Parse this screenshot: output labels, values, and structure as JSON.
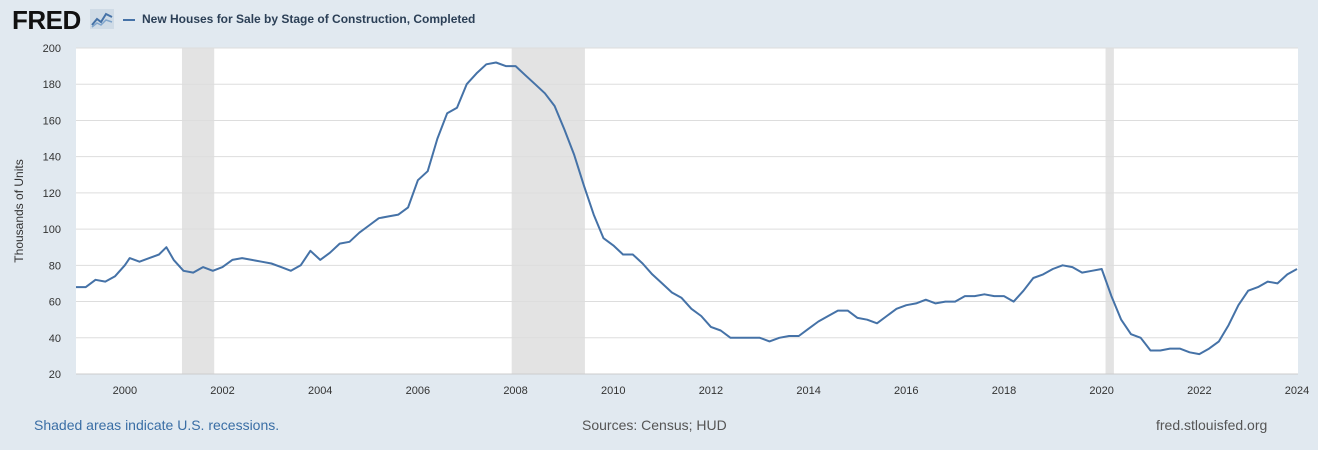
{
  "header": {
    "logo_text": "FRED",
    "logo_icon": "line-chart-icon"
  },
  "chart_data": {
    "type": "line",
    "title": "",
    "xlabel": "",
    "ylabel": "Thousands of Units",
    "xlim": [
      1999.0,
      2024.02
    ],
    "ylim": [
      20,
      200
    ],
    "grid": true,
    "legend_placement": "top-left",
    "x_ticks": [
      "2000",
      "2002",
      "2004",
      "2006",
      "2008",
      "2010",
      "2012",
      "2014",
      "2016",
      "2018",
      "2020",
      "2022",
      "2024"
    ],
    "y_ticks": [
      "20",
      "40",
      "60",
      "80",
      "100",
      "120",
      "140",
      "160",
      "180",
      "200"
    ],
    "recessions": [
      [
        2001.17,
        2001.83
      ],
      [
        2007.92,
        2009.42
      ],
      [
        2020.08,
        2020.25
      ]
    ],
    "series": [
      {
        "name": "New Houses for Sale by Stage of Construction, Completed",
        "color": "#4572a7",
        "x": [
          1999.0,
          1999.2,
          1999.4,
          1999.6,
          1999.8,
          2000.0,
          2000.1,
          2000.3,
          2000.5,
          2000.7,
          2000.85,
          2001.0,
          2001.2,
          2001.4,
          2001.6,
          2001.8,
          2002.0,
          2002.2,
          2002.4,
          2002.6,
          2002.8,
          2003.0,
          2003.2,
          2003.4,
          2003.6,
          2003.8,
          2004.0,
          2004.2,
          2004.4,
          2004.6,
          2004.8,
          2005.0,
          2005.2,
          2005.4,
          2005.6,
          2005.8,
          2006.0,
          2006.2,
          2006.4,
          2006.6,
          2006.8,
          2007.0,
          2007.2,
          2007.4,
          2007.6,
          2007.8,
          2008.0,
          2008.2,
          2008.4,
          2008.6,
          2008.8,
          2009.0,
          2009.2,
          2009.4,
          2009.6,
          2009.8,
          2010.0,
          2010.2,
          2010.4,
          2010.6,
          2010.8,
          2011.0,
          2011.2,
          2011.4,
          2011.6,
          2011.8,
          2012.0,
          2012.2,
          2012.4,
          2012.6,
          2012.8,
          2013.0,
          2013.2,
          2013.4,
          2013.6,
          2013.8,
          2014.0,
          2014.2,
          2014.4,
          2014.6,
          2014.8,
          2015.0,
          2015.2,
          2015.4,
          2015.6,
          2015.8,
          2016.0,
          2016.2,
          2016.4,
          2016.6,
          2016.8,
          2017.0,
          2017.2,
          2017.4,
          2017.6,
          2017.8,
          2018.0,
          2018.2,
          2018.4,
          2018.6,
          2018.8,
          2019.0,
          2019.2,
          2019.4,
          2019.6,
          2019.8,
          2020.0,
          2020.2,
          2020.4,
          2020.6,
          2020.8,
          2021.0,
          2021.2,
          2021.4,
          2021.6,
          2021.8,
          2022.0,
          2022.2,
          2022.4,
          2022.6,
          2022.8,
          2023.0,
          2023.2,
          2023.4,
          2023.6,
          2023.8,
          2024.0
        ],
        "values": [
          68,
          68,
          72,
          71,
          74,
          80,
          84,
          82,
          84,
          86,
          90,
          83,
          77,
          76,
          79,
          77,
          79,
          83,
          84,
          83,
          82,
          81,
          79,
          77,
          80,
          88,
          83,
          87,
          92,
          93,
          98,
          102,
          106,
          107,
          108,
          112,
          127,
          132,
          150,
          164,
          167,
          180,
          186,
          191,
          192,
          190,
          190,
          185,
          180,
          175,
          168,
          155,
          141,
          124,
          108,
          95,
          91,
          86,
          86,
          81,
          75,
          70,
          65,
          62,
          56,
          52,
          46,
          44,
          40,
          40,
          40,
          40,
          38,
          40,
          41,
          41,
          45,
          49,
          52,
          55,
          55,
          51,
          50,
          48,
          52,
          56,
          58,
          59,
          61,
          59,
          60,
          60,
          63,
          63,
          64,
          63,
          63,
          60,
          66,
          73,
          75,
          78,
          80,
          79,
          76,
          77,
          78,
          63,
          50,
          42,
          40,
          33,
          33,
          34,
          34,
          32,
          31,
          34,
          38,
          47,
          58,
          66,
          68,
          71,
          70,
          75,
          78
        ]
      }
    ]
  },
  "legend": {
    "series_label": "New Houses for Sale by Stage of Construction, Completed"
  },
  "footer": {
    "recession_note": "Shaded areas indicate U.S. recessions.",
    "sources": "Sources: Census; HUD",
    "site": "fred.stlouisfed.org"
  }
}
